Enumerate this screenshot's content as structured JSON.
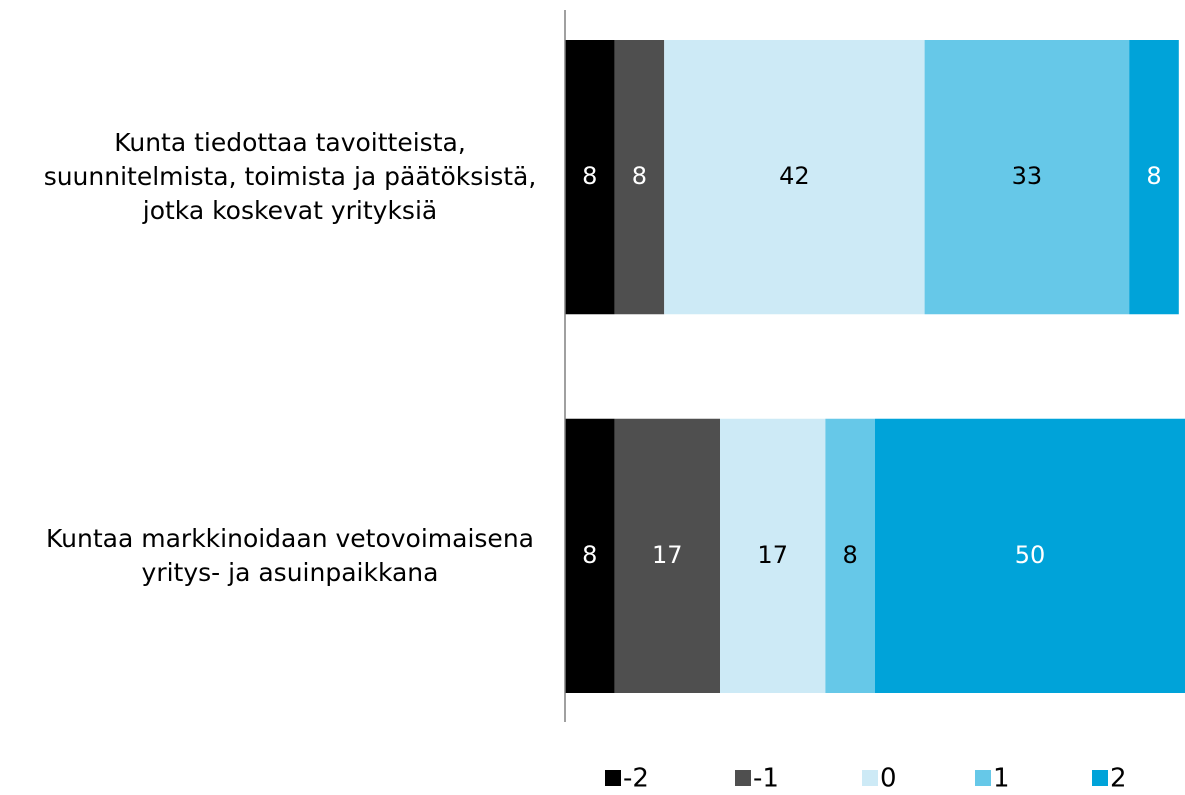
{
  "chart_data": {
    "type": "stacked-barh",
    "categories": [
      "Kunta tiedottaa tavoitteista, suunnitelmista, toimista ja päätöksistä, jotka koskevat yrityksiä",
      "Kuntaa markkinoidaan vetovoimaisena yritys- ja asuinpaikkana"
    ],
    "series": [
      {
        "name": "-2",
        "color": "#000000",
        "values": [
          8,
          8
        ]
      },
      {
        "name": "-1",
        "color": "#4f4f4f",
        "values": [
          8,
          17
        ]
      },
      {
        "name": "0",
        "color": "#cdeaf6",
        "values": [
          42,
          17
        ]
      },
      {
        "name": "1",
        "color": "#66c8e8",
        "values": [
          33,
          8
        ]
      },
      {
        "name": "2",
        "color": "#00a3d9",
        "values": [
          8,
          50
        ]
      }
    ],
    "legend": "bottom"
  }
}
